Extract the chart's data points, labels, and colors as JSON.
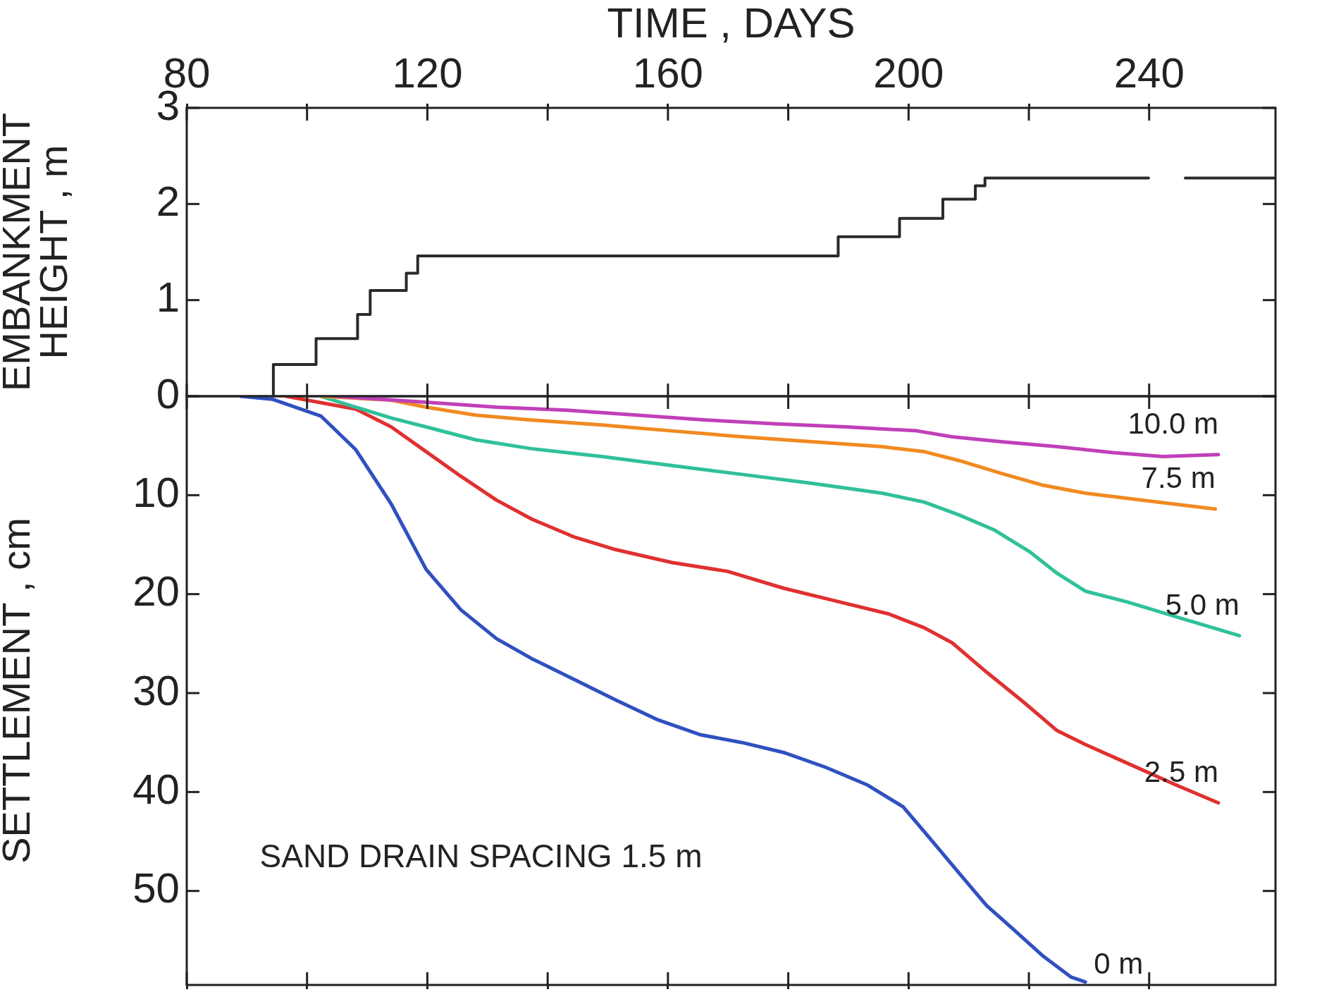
{
  "chart_data": [
    {
      "type": "step",
      "xlabel": "TIME , DAYS",
      "ylabel": "EMBANKMENT\nHEIGHT , m",
      "color": "#2a2a2a",
      "x": [
        94.4,
        94.4,
        101.5,
        108.4,
        110.5,
        116.5,
        118.4,
        188.3,
        198.5,
        205.7,
        211.1,
        212.7,
        239.9,
        243,
        246,
        260.8
      ],
      "values": [
        0,
        0.33,
        0.6,
        0.85,
        1.1,
        1.28,
        1.46,
        1.66,
        1.85,
        2.05,
        2.19,
        2.27,
        2.27,
        null,
        2.27,
        2.27
      ],
      "xlim": [
        80,
        261
      ],
      "xticks": [
        80,
        {
          "value": 100,
          "label": null
        },
        120,
        {
          "value": 140,
          "label": null
        },
        160,
        {
          "value": 180,
          "label": null
        },
        200,
        {
          "value": 220,
          "label": null
        },
        240
      ],
      "ylim": [
        0,
        3
      ],
      "yticks": [
        0,
        1,
        2,
        3
      ]
    },
    {
      "type": "line",
      "ylabel": "SETTLEMENT , cm",
      "tick_labels": "y",
      "annotations": [
        "SAND DRAIN SPACING 1.5 m"
      ],
      "xlim": [
        80,
        261
      ],
      "xticks": [
        80,
        100,
        120,
        140,
        160,
        180,
        200,
        220,
        240
      ],
      "ylim": [
        59.5,
        0
      ],
      "yticks": [
        {
          "value": 0,
          "label": null
        },
        10,
        20,
        30,
        40,
        50
      ],
      "series": [
        {
          "name": "10.0 m",
          "color": "#c040b8",
          "x": [
            104.6,
            119.8,
            131.5,
            143.1,
            154.8,
            166.4,
            178.1,
            189.7,
            201.4,
            207.2,
            215.4,
            224.7,
            234,
            242.2,
            251.5
          ],
          "values": [
            0,
            0.6,
            1.1,
            1.4,
            1.9,
            2.4,
            2.8,
            3.1,
            3.5,
            4.1,
            4.6,
            5.1,
            5.7,
            6.1,
            5.9
          ]
        },
        {
          "name": "7.5 m",
          "color": "#f08a20",
          "x": [
            102.3,
            114,
            119.8,
            128,
            137.3,
            149,
            160.6,
            172.3,
            183.9,
            195.6,
            202.6,
            208.4,
            215.4,
            222.4,
            229.4,
            238.7,
            251
          ],
          "values": [
            0,
            0.4,
            1.1,
            1.9,
            2.4,
            2.9,
            3.5,
            4.1,
            4.6,
            5.1,
            5.6,
            6.5,
            7.8,
            9.0,
            9.8,
            10.5,
            11.4
          ]
        },
        {
          "name": "5.0 m",
          "color": "#30c09a",
          "x": [
            102.3,
            107,
            114,
            119.8,
            128,
            137.3,
            149,
            160.6,
            172.3,
            183.9,
            195.6,
            202.6,
            208.4,
            214.2,
            220.1,
            224.7,
            229.4,
            236.4,
            244.5,
            255
          ],
          "values": [
            0,
            0.9,
            2.2,
            3.1,
            4.4,
            5.3,
            6.1,
            7.0,
            7.9,
            8.8,
            9.8,
            10.7,
            12.0,
            13.5,
            15.7,
            17.9,
            19.7,
            20.8,
            22.3,
            24.2
          ]
        },
        {
          "name": "2.5 m",
          "color": "#e03030",
          "x": [
            96.5,
            108.1,
            114,
            119.8,
            125.6,
            131.5,
            137.3,
            144.3,
            151.3,
            160.6,
            169.9,
            179.2,
            188.6,
            196.7,
            202.6,
            207.2,
            213,
            218.9,
            224.7,
            229.4,
            236.4,
            244.5,
            251.5
          ],
          "values": [
            0,
            1.3,
            3.1,
            5.6,
            8.1,
            10.5,
            12.4,
            14.2,
            15.5,
            16.8,
            17.7,
            19.4,
            20.8,
            22.0,
            23.4,
            24.9,
            27.9,
            30.8,
            33.8,
            35.2,
            37.1,
            39.3,
            41.1
          ]
        },
        {
          "name": "0 m",
          "color": "#3050c0",
          "x": [
            89,
            94.2,
            102.3,
            108.1,
            114,
            119.8,
            125.6,
            131.5,
            137.3,
            144.3,
            151.3,
            158.3,
            165.3,
            172.3,
            179.2,
            186.2,
            193.2,
            199.1,
            203.7,
            208.4,
            213,
            217.1,
            222.4,
            227,
            229.4
          ],
          "values": [
            0,
            0.3,
            2.0,
            5.4,
            10.9,
            17.5,
            21.6,
            24.5,
            26.5,
            28.6,
            30.7,
            32.7,
            34.2,
            35.0,
            36.0,
            37.5,
            39.3,
            41.5,
            44.8,
            48.2,
            51.5,
            53.7,
            56.6,
            58.7,
            59.2
          ]
        }
      ]
    }
  ]
}
